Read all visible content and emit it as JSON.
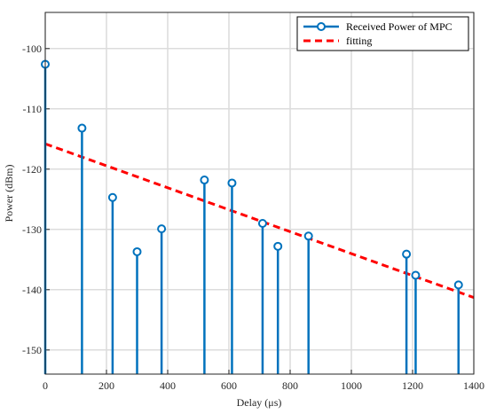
{
  "chart_data": {
    "type": "stem",
    "xlabel": "Delay (μs)",
    "ylabel": "Power (dBm)",
    "xlim": [
      0,
      1400
    ],
    "ylim": [
      -154,
      -94
    ],
    "xticks": [
      0,
      200,
      400,
      600,
      800,
      1000,
      1200,
      1400
    ],
    "yticks": [
      -100,
      -110,
      -120,
      -130,
      -140,
      -150
    ],
    "grid": true,
    "legend_position": "top-right",
    "series": [
      {
        "name": "Received Power of MPC",
        "color": "#0072bd",
        "marker": "circle",
        "x": [
          0,
          120,
          220,
          300,
          380,
          520,
          610,
          710,
          760,
          860,
          1180,
          1210,
          1350
        ],
        "y": [
          -102.6,
          -113.2,
          -124.7,
          -133.7,
          -129.9,
          -121.8,
          -122.3,
          -129.0,
          -132.8,
          -131.1,
          -134.1,
          -137.6,
          -139.2
        ]
      },
      {
        "name": "fitting",
        "color": "#ff0000",
        "style": "dashed",
        "x": [
          0,
          1400
        ],
        "y": [
          -115.8,
          -141.3
        ]
      }
    ]
  }
}
